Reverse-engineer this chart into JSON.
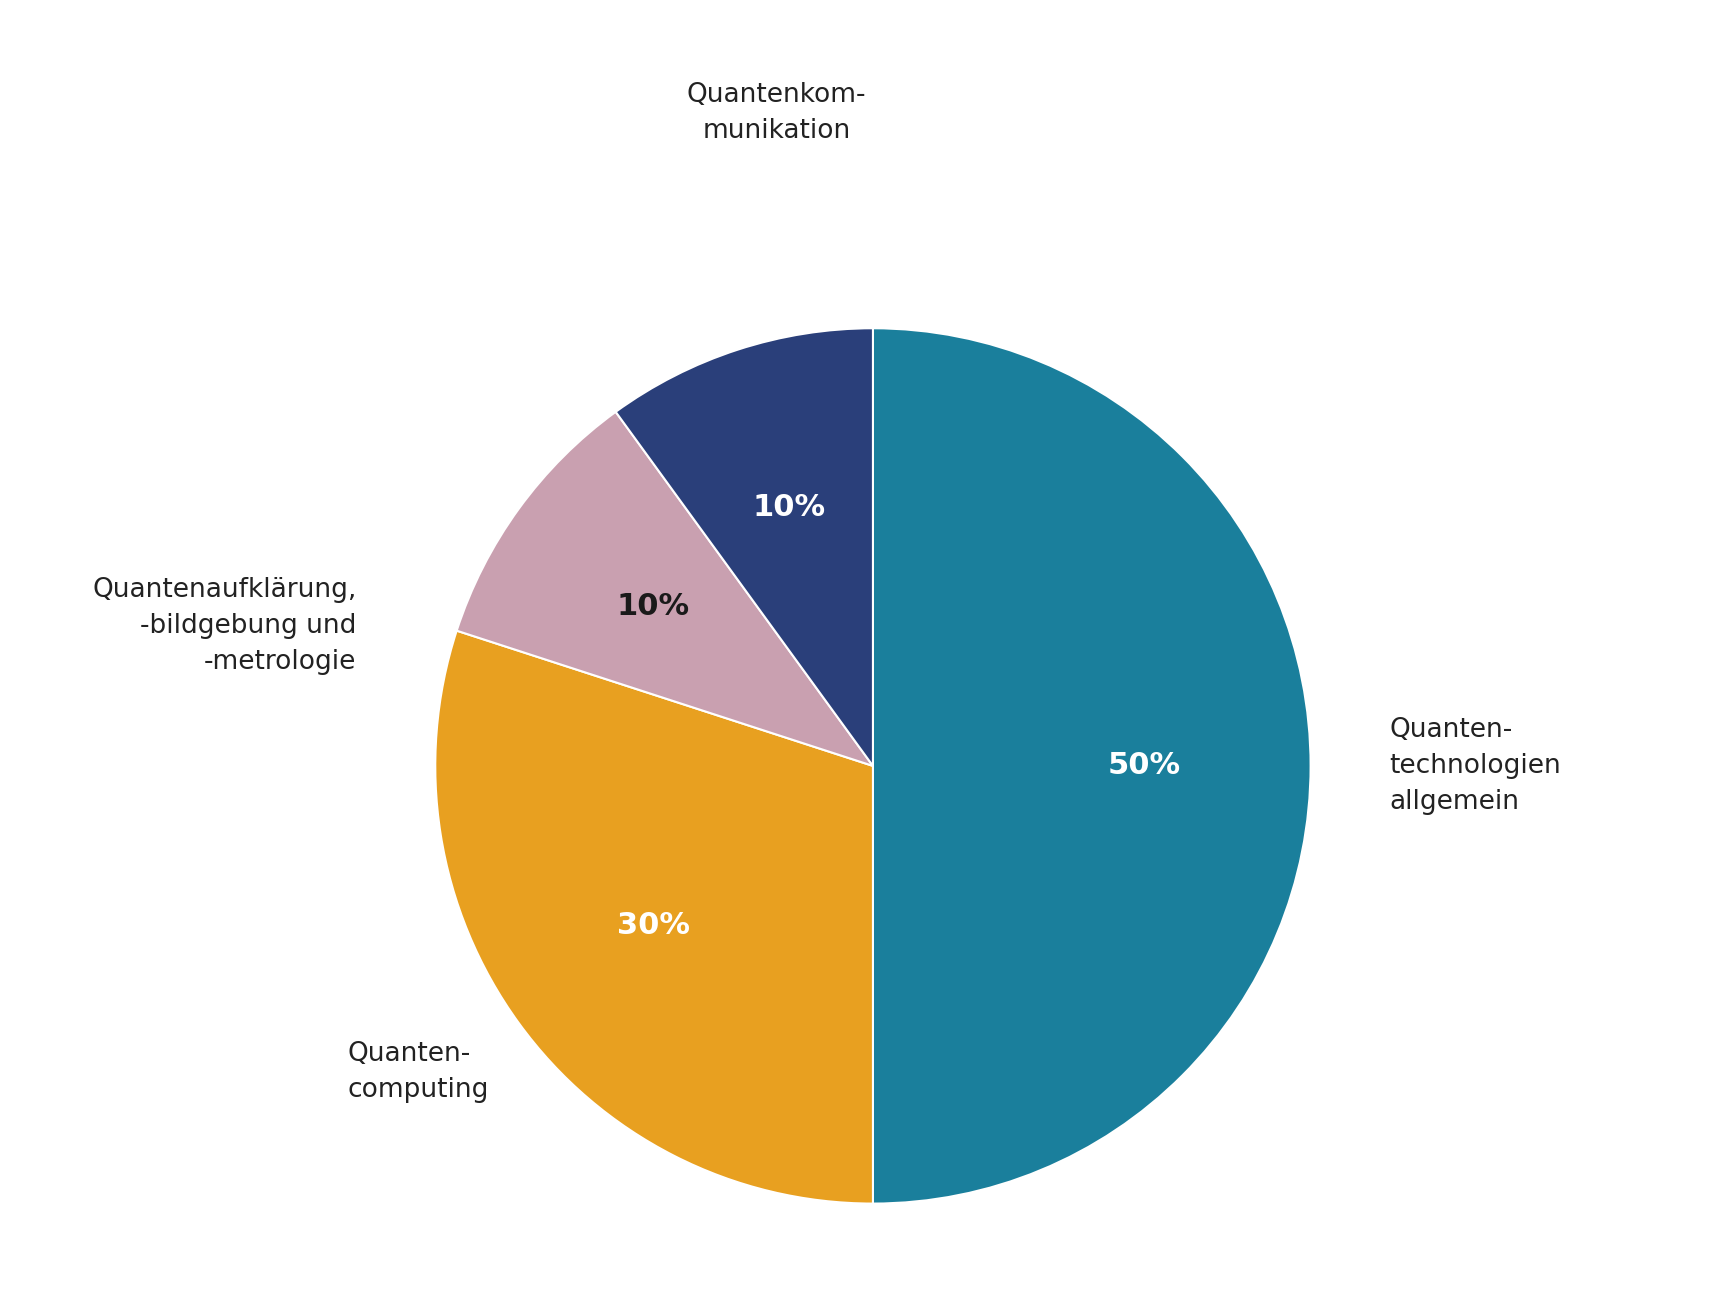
{
  "slices": [
    {
      "label": "Quanten-\ntechnologien\nallgemein",
      "value": 50,
      "color": "#1a7f9c",
      "pct_label": "50%",
      "pct_color": "white"
    },
    {
      "label": "Quanten-\ncomputing",
      "value": 30,
      "color": "#e8a020",
      "pct_label": "30%",
      "pct_color": "white"
    },
    {
      "label": "Quantenaufklärung,\n-bildgebung und\n-metrologie",
      "value": 10,
      "color": "#c9a0b0",
      "pct_label": "10%",
      "pct_color": "#1a1a1a"
    },
    {
      "label": "Quantenkom-\nmunikation",
      "value": 10,
      "color": "#2a3f7a",
      "pct_label": "10%",
      "pct_color": "white"
    }
  ],
  "start_angle": 90,
  "figsize": [
    17.24,
    13.13
  ],
  "dpi": 100,
  "background_color": "#ffffff",
  "label_fontsize": 19,
  "pct_fontsize": 22,
  "label_color": "#222222"
}
